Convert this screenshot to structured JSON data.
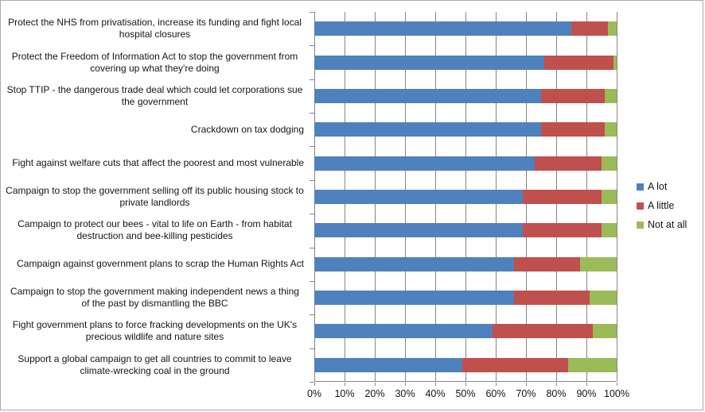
{
  "chart_data": {
    "type": "bar",
    "orientation": "horizontal",
    "stacked": true,
    "title": "",
    "xlabel": "",
    "ylabel": "",
    "xlim": [
      0,
      100
    ],
    "grid": true,
    "legend_position": "right",
    "categories": [
      "Protect the NHS from privatisation, increase its funding and fight local hospital closures",
      "Protect the Freedom of Information Act to stop the government from covering up what they're doing",
      "Stop TTIP - the dangerous trade deal which could let corporations sue the government",
      "Crackdown on tax dodging",
      "Fight against welfare cuts that affect the poorest and most vulnerable",
      "Campaign to stop the government selling off its public housing stock to private landlords",
      "Campaign to protect our bees - vital to life on Earth - from habitat destruction and bee-killing pesticides",
      "Campaign against government plans to scrap the Human Rights Act",
      "Campaign to stop the government making independent news a thing of the past by dismantling the BBC",
      "Fight government plans to force fracking developments on the UK's precious wildlife and nature sites",
      "Support a global campaign to get all countries to commit to leave climate-wrecking coal in the ground"
    ],
    "series": [
      {
        "name": "A lot",
        "color": "#4F81BD",
        "values": [
          85,
          76,
          75,
          75,
          73,
          69,
          69,
          66,
          66,
          59,
          49
        ]
      },
      {
        "name": "A little",
        "color": "#C0504D",
        "values": [
          12,
          23,
          21,
          21,
          22,
          26,
          26,
          22,
          25,
          33,
          35
        ]
      },
      {
        "name": "Not at all",
        "color": "#9BBB59",
        "values": [
          3,
          1,
          4,
          4,
          5,
          5,
          5,
          12,
          9,
          8,
          16
        ]
      }
    ],
    "x_ticks": [
      "0%",
      "10%",
      "20%",
      "30%",
      "40%",
      "50%",
      "60%",
      "70%",
      "80%",
      "90%",
      "100%"
    ]
  }
}
